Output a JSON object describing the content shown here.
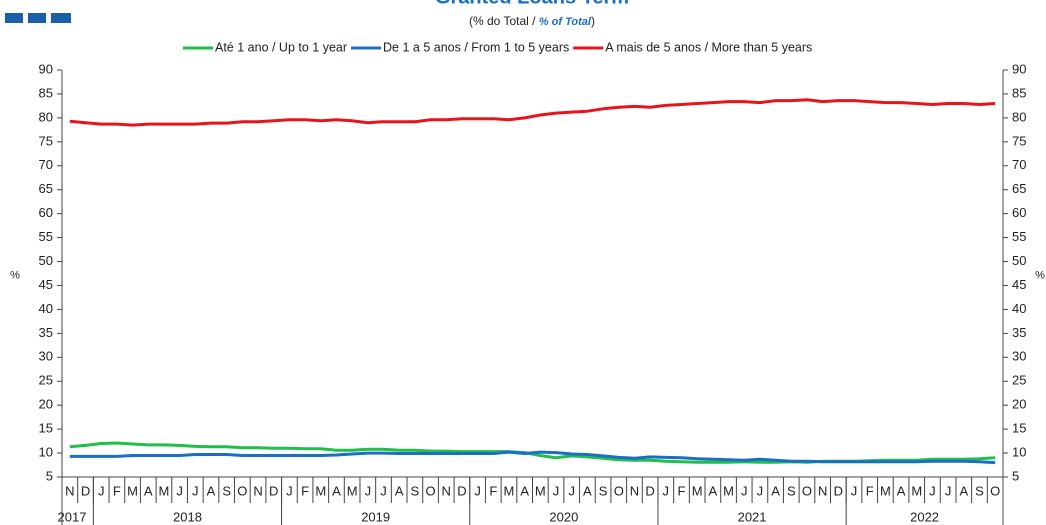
{
  "chart_data": {
    "type": "line",
    "title": "Granted Loans Term",
    "subtitle": [
      "(% do Total  /",
      "% of Total",
      ")"
    ],
    "y_label": "%",
    "categories": [
      "N",
      "D",
      "J",
      "F",
      "M",
      "A",
      "M",
      "J",
      "J",
      "A",
      "S",
      "O",
      "N",
      "D",
      "J",
      "F",
      "M",
      "A",
      "M",
      "J",
      "J",
      "A",
      "S",
      "O",
      "N",
      "D",
      "J",
      "F",
      "M",
      "A",
      "M",
      "J",
      "J",
      "A",
      "S",
      "O",
      "N",
      "D",
      "J",
      "F",
      "M",
      "A",
      "M",
      "J",
      "J",
      "A",
      "S",
      "O",
      "N",
      "D",
      "J",
      "F",
      "M",
      "A",
      "M",
      "J",
      "J",
      "A",
      "S",
      "O"
    ],
    "x_groups": [
      {
        "label": "2017",
        "count": 2
      },
      {
        "label": "2018",
        "count": 12
      },
      {
        "label": "2019",
        "count": 12
      },
      {
        "label": "2020",
        "count": 12
      },
      {
        "label": "2021",
        "count": 12
      },
      {
        "label": "2022",
        "count": 10
      }
    ],
    "series": [
      {
        "name": "Até 1 ano / Up to 1 year",
        "color": "#1fbf4a",
        "values": [
          11.3,
          11.6,
          12.0,
          12.1,
          11.9,
          11.7,
          11.7,
          11.6,
          11.4,
          11.3,
          11.3,
          11.1,
          11.1,
          11.0,
          11.0,
          10.9,
          10.9,
          10.6,
          10.6,
          10.8,
          10.8,
          10.6,
          10.6,
          10.4,
          10.4,
          10.3,
          10.3,
          10.3,
          10.3,
          10.1,
          9.5,
          9.0,
          9.4,
          9.2,
          8.9,
          8.6,
          8.5,
          8.5,
          8.3,
          8.2,
          8.1,
          8.1,
          8.1,
          8.2,
          8.1,
          8.1,
          8.2,
          8.1,
          8.3,
          8.3,
          8.3,
          8.4,
          8.5,
          8.5,
          8.5,
          8.7,
          8.7,
          8.7,
          8.8,
          9.0
        ]
      },
      {
        "name": "De 1 a 5 anos / From 1 to 5 years",
        "color": "#1a6fc4",
        "values": [
          9.3,
          9.3,
          9.3,
          9.3,
          9.5,
          9.5,
          9.5,
          9.5,
          9.7,
          9.7,
          9.7,
          9.5,
          9.5,
          9.5,
          9.5,
          9.5,
          9.5,
          9.6,
          9.8,
          10.0,
          10.0,
          9.9,
          9.9,
          9.9,
          9.9,
          9.9,
          9.9,
          9.9,
          10.2,
          9.9,
          10.2,
          10.1,
          9.8,
          9.7,
          9.4,
          9.1,
          8.9,
          9.2,
          9.1,
          9.0,
          8.8,
          8.7,
          8.6,
          8.5,
          8.7,
          8.5,
          8.3,
          8.3,
          8.2,
          8.2,
          8.2,
          8.2,
          8.2,
          8.2,
          8.2,
          8.3,
          8.3,
          8.3,
          8.2,
          8.0
        ]
      },
      {
        "name": "A mais de 5 anos / More than 5 years",
        "color": "#e8141b",
        "values": [
          79.3,
          79.0,
          78.7,
          78.7,
          78.5,
          78.7,
          78.7,
          78.7,
          78.7,
          78.9,
          78.9,
          79.2,
          79.2,
          79.4,
          79.6,
          79.6,
          79.4,
          79.6,
          79.4,
          79.0,
          79.2,
          79.2,
          79.2,
          79.6,
          79.6,
          79.8,
          79.8,
          79.8,
          79.6,
          80.0,
          80.6,
          81.0,
          81.2,
          81.4,
          81.9,
          82.2,
          82.4,
          82.2,
          82.6,
          82.8,
          83.0,
          83.2,
          83.4,
          83.4,
          83.2,
          83.6,
          83.6,
          83.8,
          83.4,
          83.6,
          83.6,
          83.4,
          83.2,
          83.2,
          83.0,
          82.8,
          83.0,
          83.0,
          82.8,
          83.0
        ]
      }
    ],
    "ylim": [
      5,
      90
    ],
    "yticks": [
      5,
      10,
      15,
      20,
      25,
      30,
      35,
      40,
      45,
      50,
      55,
      60,
      65,
      70,
      75,
      80,
      85,
      90
    ]
  }
}
